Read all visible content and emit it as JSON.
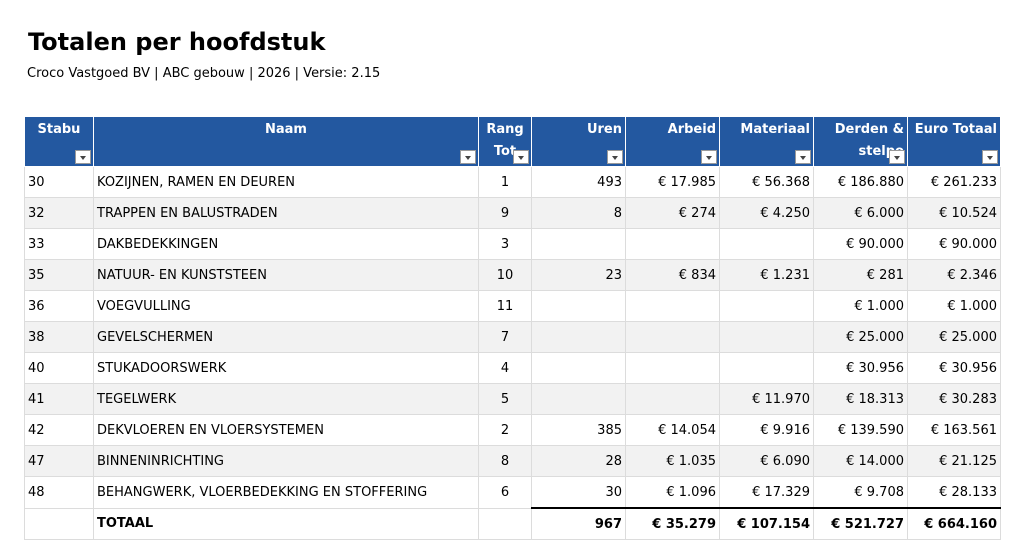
{
  "header": {
    "title": "Totalen per hoofdstuk",
    "subtitle": "Croco Vastgoed BV | ABC gebouw | 2026 | Versie: 2.15"
  },
  "table": {
    "columns": [
      "Stabu",
      "Naam",
      "Rang\nTot",
      "Uren",
      "Arbeid",
      "Materiaal",
      "Derden &\nstelpo",
      "Euro Totaal"
    ],
    "rows": [
      [
        "30",
        "KOZIJNEN, RAMEN EN DEUREN",
        "1",
        "493",
        "€ 17.985",
        "€ 56.368",
        "€ 186.880",
        "€ 261.233"
      ],
      [
        "32",
        "TRAPPEN EN BALUSTRADEN",
        "9",
        "8",
        "€ 274",
        "€ 4.250",
        "€ 6.000",
        "€ 10.524"
      ],
      [
        "33",
        "DAKBEDEKKINGEN",
        "3",
        null,
        null,
        null,
        "€ 90.000",
        "€ 90.000"
      ],
      [
        "35",
        "NATUUR- EN KUNSTSTEEN",
        "10",
        "23",
        "€ 834",
        "€ 1.231",
        "€ 281",
        "€ 2.346"
      ],
      [
        "36",
        "VOEGVULLING",
        "11",
        null,
        null,
        null,
        "€ 1.000",
        "€ 1.000"
      ],
      [
        "38",
        "GEVELSCHERMEN",
        "7",
        null,
        null,
        null,
        "€ 25.000",
        "€ 25.000"
      ],
      [
        "40",
        "STUKADOORSWERK",
        "4",
        null,
        null,
        null,
        "€ 30.956",
        "€ 30.956"
      ],
      [
        "41",
        "TEGELWERK",
        "5",
        null,
        null,
        "€ 11.970",
        "€ 18.313",
        "€ 30.283"
      ],
      [
        "42",
        "DEKVLOEREN EN VLOERSYSTEMEN",
        "2",
        "385",
        "€ 14.054",
        "€ 9.916",
        "€ 139.590",
        "€ 163.561"
      ],
      [
        "47",
        "BINNENINRICHTING",
        "8",
        "28",
        "€ 1.035",
        "€ 6.090",
        "€ 14.000",
        "€ 21.125"
      ],
      [
        "48",
        "BEHANGWERK, VLOERBEDEKKING EN STOFFERING",
        "6",
        "30",
        "€ 1.096",
        "€ 17.329",
        "€ 9.708",
        "€ 28.133"
      ]
    ],
    "total": [
      null,
      "TOTAAL",
      null,
      "967",
      "€ 35.279",
      "€ 107.154",
      "€ 521.727",
      "€ 664.160"
    ]
  }
}
